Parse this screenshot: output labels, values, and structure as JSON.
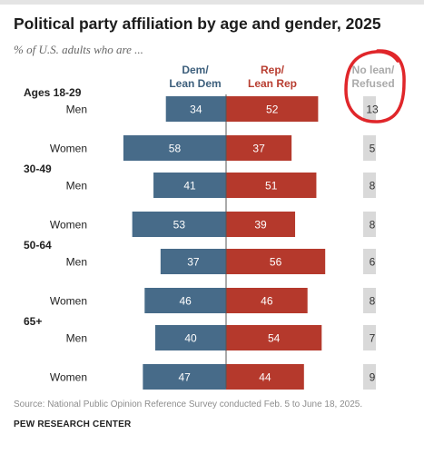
{
  "chart_data": {
    "type": "bar",
    "title": "Political party affiliation by age and gender, 2025",
    "subtitle": "% of U.S. adults who are ...",
    "columns": {
      "dem": "Dem/\nLean Dem",
      "rep": "Rep/\nLean Rep",
      "none": "No lean/\nRefused"
    },
    "colors": {
      "dem": "#476b89",
      "rep": "#b5392c",
      "none": "#d9d9d9",
      "highlight": "#e0262a"
    },
    "groups": [
      {
        "age": "Ages 18-29",
        "rows": [
          {
            "gender": "Men",
            "dem": 34,
            "rep": 52,
            "none": 13
          },
          {
            "gender": "Women",
            "dem": 58,
            "rep": 37,
            "none": 5
          }
        ]
      },
      {
        "age": "30-49",
        "rows": [
          {
            "gender": "Men",
            "dem": 41,
            "rep": 51,
            "none": 8
          },
          {
            "gender": "Women",
            "dem": 53,
            "rep": 39,
            "none": 8
          }
        ]
      },
      {
        "age": "50-64",
        "rows": [
          {
            "gender": "Men",
            "dem": 37,
            "rep": 56,
            "none": 6
          },
          {
            "gender": "Women",
            "dem": 46,
            "rep": 46,
            "none": 8
          }
        ]
      },
      {
        "age": "65+",
        "rows": [
          {
            "gender": "Men",
            "dem": 40,
            "rep": 54,
            "none": 7
          },
          {
            "gender": "Women",
            "dem": 47,
            "rep": 44,
            "none": 9
          }
        ]
      }
    ]
  },
  "source": "Source: National Public Opinion Reference Survey conducted Feb. 5 to June 18, 2025.",
  "organization": "PEW RESEARCH CENTER"
}
